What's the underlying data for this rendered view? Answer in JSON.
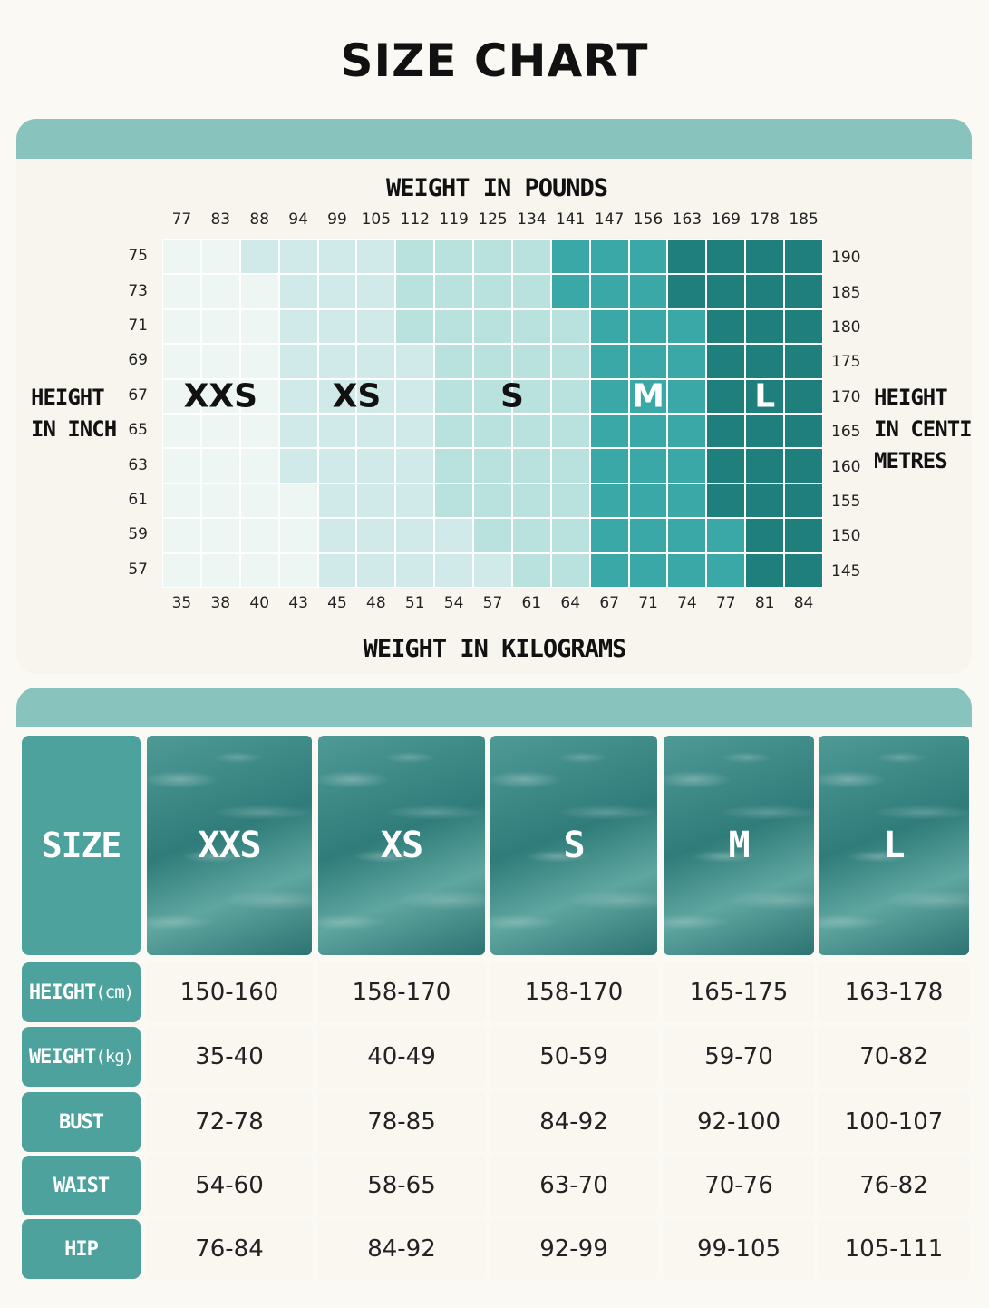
{
  "title": "SIZE CHART",
  "chart_data": {
    "type": "heatmap",
    "top_axis_title": "WEIGHT IN POUNDS",
    "bottom_axis_title": "WEIGHT IN KILOGRAMS",
    "left_axis_title": "HEIGHT\nIN INCH",
    "right_axis_title": "HEIGHT\nIN CENTI\nMETRES",
    "weight_lb": [
      "77",
      "83",
      "88",
      "94",
      "99",
      "105",
      "112",
      "119",
      "125",
      "134",
      "141",
      "147",
      "156",
      "163",
      "169",
      "178",
      "185"
    ],
    "weight_kg": [
      "35",
      "38",
      "40",
      "43",
      "45",
      "48",
      "51",
      "54",
      "57",
      "61",
      "64",
      "67",
      "71",
      "74",
      "77",
      "81",
      "84"
    ],
    "height_in": [
      "75",
      "73",
      "71",
      "69",
      "67",
      "65",
      "63",
      "61",
      "59",
      "57"
    ],
    "height_cm": [
      "190",
      "185",
      "180",
      "175",
      "170",
      "165",
      "160",
      "155",
      "150",
      "145"
    ],
    "sizes": [
      "XXS",
      "XS",
      "S",
      "M",
      "L"
    ],
    "size_colors": [
      "#eef6f4",
      "#cfeae8",
      "#b9e2df",
      "#3aa8a6",
      "#1f7f7c"
    ],
    "grid": [
      [
        0,
        0,
        1,
        1,
        1,
        1,
        2,
        2,
        2,
        2,
        3,
        3,
        3,
        4,
        4,
        4,
        4
      ],
      [
        0,
        0,
        0,
        1,
        1,
        1,
        2,
        2,
        2,
        2,
        3,
        3,
        3,
        4,
        4,
        4,
        4
      ],
      [
        0,
        0,
        0,
        1,
        1,
        1,
        2,
        2,
        2,
        2,
        2,
        3,
        3,
        3,
        4,
        4,
        4
      ],
      [
        0,
        0,
        0,
        1,
        1,
        1,
        1,
        2,
        2,
        2,
        2,
        3,
        3,
        3,
        4,
        4,
        4
      ],
      [
        0,
        0,
        0,
        1,
        1,
        1,
        1,
        2,
        2,
        2,
        2,
        3,
        3,
        3,
        4,
        4,
        4
      ],
      [
        0,
        0,
        0,
        1,
        1,
        1,
        1,
        2,
        2,
        2,
        2,
        3,
        3,
        3,
        4,
        4,
        4
      ],
      [
        0,
        0,
        0,
        1,
        1,
        1,
        1,
        2,
        2,
        2,
        2,
        3,
        3,
        3,
        4,
        4,
        4
      ],
      [
        0,
        0,
        0,
        0,
        1,
        1,
        1,
        2,
        2,
        2,
        2,
        3,
        3,
        3,
        4,
        4,
        4
      ],
      [
        0,
        0,
        0,
        0,
        1,
        1,
        1,
        1,
        2,
        2,
        2,
        3,
        3,
        3,
        3,
        4,
        4
      ],
      [
        0,
        0,
        0,
        0,
        1,
        1,
        1,
        1,
        1,
        2,
        2,
        3,
        3,
        3,
        3,
        4,
        4
      ]
    ]
  },
  "table": {
    "header_label": "SIZE",
    "sizes": [
      "XXS",
      "XS",
      "S",
      "M",
      "L"
    ],
    "rows": [
      {
        "label": "HEIGHT",
        "unit": "(cm)",
        "values": [
          "150-160",
          "158-170",
          "158-170",
          "165-175",
          "163-178"
        ]
      },
      {
        "label": "WEIGHT",
        "unit": "(kg)",
        "values": [
          "35-40",
          "40-49",
          "50-59",
          "59-70",
          "70-82"
        ]
      },
      {
        "label": "BUST",
        "unit": "",
        "values": [
          "72-78",
          "78-85",
          "84-92",
          "92-100",
          "100-107"
        ]
      },
      {
        "label": "WAIST",
        "unit": "",
        "values": [
          "54-60",
          "58-65",
          "63-70",
          "70-76",
          "76-82"
        ]
      },
      {
        "label": "HIP",
        "unit": "",
        "values": [
          "76-84",
          "84-92",
          "92-99",
          "99-105",
          "105-111"
        ]
      }
    ]
  }
}
